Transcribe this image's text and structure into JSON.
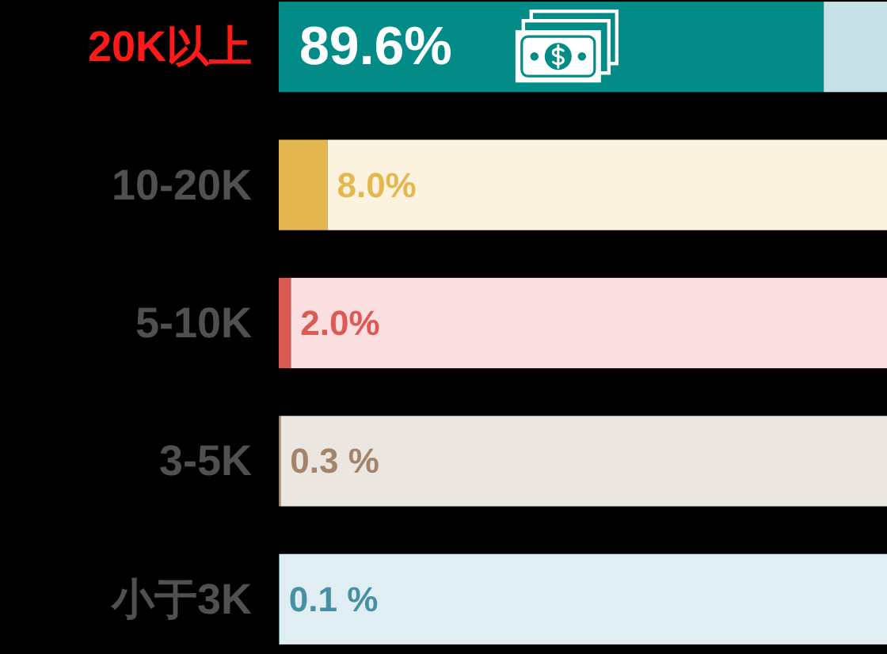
{
  "chart_data": {
    "type": "bar",
    "orientation": "horizontal",
    "stacked": true,
    "categories": [
      "20K以上",
      "10-20K",
      "5-10K",
      "3-5K",
      "小于3K"
    ],
    "series": [
      {
        "colors": [
          "#028b87",
          "#e4b84f",
          "#dc5a54",
          "#a2846c",
          "#478fa2"
        ],
        "values": [
          89.6,
          8.0,
          2.0,
          0.3,
          0.1
        ],
        "value_labels": [
          "89.6%",
          "8.0%",
          "2.0%",
          "0.3 %",
          "0.1 %"
        ]
      },
      {
        "colors": [
          "#c8e0e8",
          "#fbf3df",
          "#fbdedf",
          "#ece6e1",
          "#e0eef3"
        ],
        "values": [
          10.4,
          92.0,
          98.0,
          99.7,
          99.9
        ]
      }
    ]
  }
}
